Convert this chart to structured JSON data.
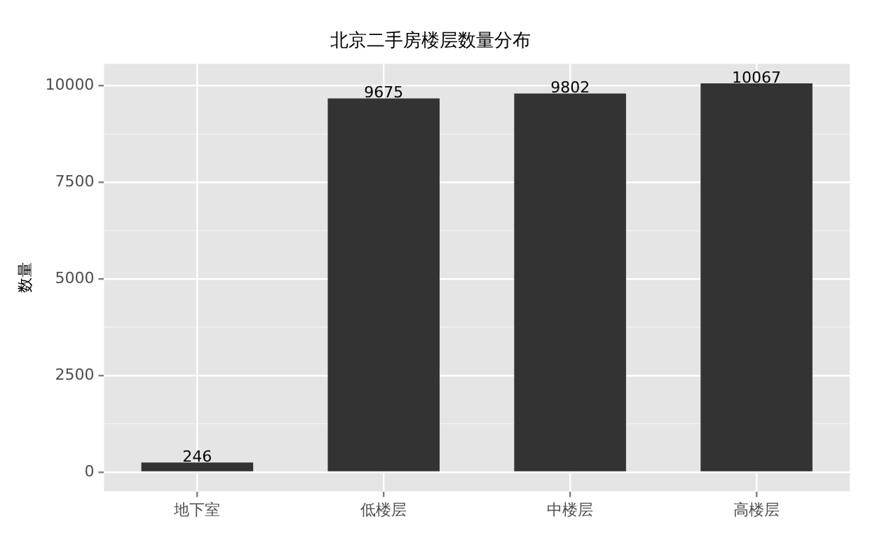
{
  "chart_data": {
    "type": "bar",
    "title": "北京二手房楼层数量分布",
    "ylabel": "数量",
    "categories": [
      "地下室",
      "低楼层",
      "中楼层",
      "高楼层"
    ],
    "values": [
      246,
      9675,
      9802,
      10067
    ],
    "color": "#333333",
    "ylim": [
      -503,
      10570
    ],
    "yticks": [
      0,
      2500,
      5000,
      7500,
      10000
    ],
    "grid": true,
    "data_labels": true
  }
}
